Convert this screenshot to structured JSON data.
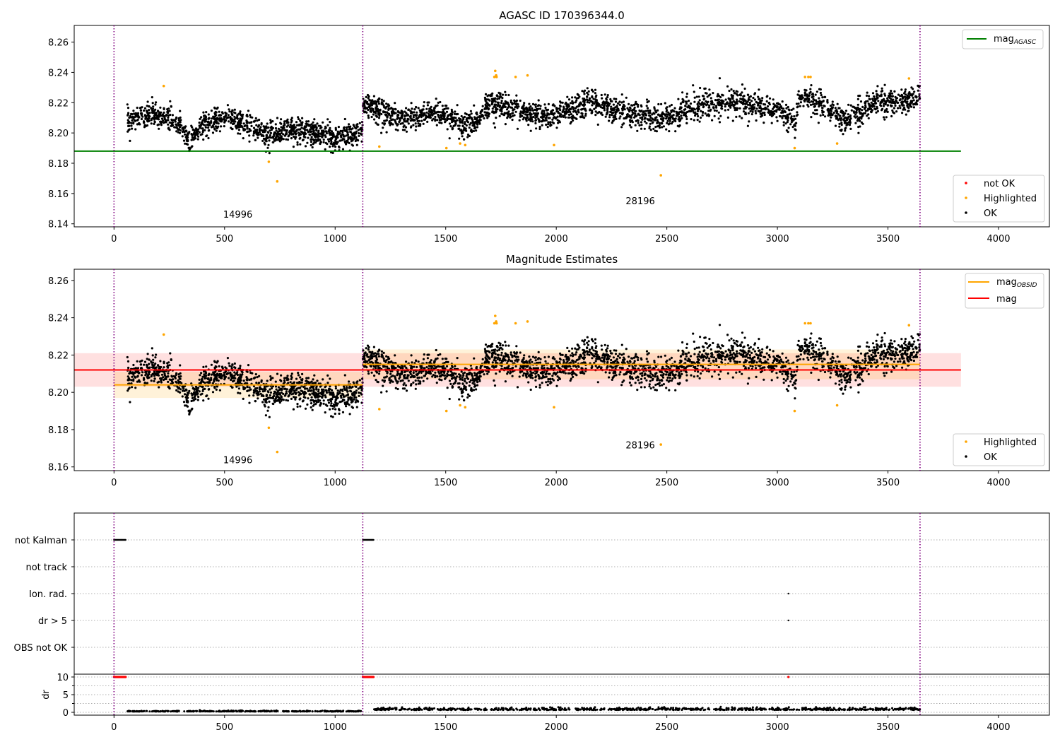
{
  "colors": {
    "ok": "#000000",
    "highlighted": "#ffa500",
    "not_ok": "#ff0000",
    "mag_agasc": "#008000",
    "mag_obsid": "#ffa500",
    "mag": "#ff0000",
    "obs_boundary": "#800080",
    "grid": "#b0b0b0"
  },
  "chart_data": [
    {
      "type": "scatter",
      "title": "AGASC ID 170396344.0",
      "xlim": [
        -180,
        4230
      ],
      "ylim": [
        8.138,
        8.271
      ],
      "xticks": [
        0,
        500,
        1000,
        1500,
        2000,
        2500,
        3000,
        3500,
        4000
      ],
      "yticks": [
        8.14,
        8.16,
        8.18,
        8.2,
        8.22,
        8.24,
        8.26
      ],
      "ytick_labels": [
        "8.14",
        "8.16",
        "8.18",
        "8.20",
        "8.22",
        "8.24",
        "8.26"
      ],
      "obs_boundaries": [
        0,
        1125,
        3645
      ],
      "obs_labels": [
        {
          "text": "14996",
          "x": 560,
          "y": 8.144
        },
        {
          "text": "28196",
          "x": 2380,
          "y": 8.153
        }
      ],
      "lines": [
        {
          "name": "mag_AGASC",
          "x": [
            -180,
            3830
          ],
          "y": [
            8.188,
            8.188
          ],
          "color": "#008000"
        }
      ],
      "legend_upper": {
        "location": "upper right",
        "entries": [
          {
            "label_main": "mag",
            "label_sub": "AGASC",
            "color": "#008000"
          }
        ]
      },
      "legend_lower": {
        "location": "lower right",
        "entries": [
          {
            "label": "not OK",
            "color": "#ff0000"
          },
          {
            "label": "Highlighted",
            "color": "#ffa500"
          },
          {
            "label": "OK",
            "color": "#000000"
          }
        ]
      },
      "series": [
        {
          "name": "OK",
          "observations": [
            {
              "start": 60,
              "end": 1125,
              "segments": [
                [
                  60,
                  8.208
                ],
                [
                  150,
                  8.212
                ],
                [
                  230,
                  8.21
                ],
                [
                  290,
                  8.206
                ],
                [
                  340,
                  8.194
                ],
                [
                  400,
                  8.205
                ],
                [
                  520,
                  8.21
                ],
                [
                  620,
                  8.204
                ],
                [
                  700,
                  8.198
                ],
                [
                  780,
                  8.203
                ],
                [
                  900,
                  8.2
                ],
                [
                  1000,
                  8.197
                ],
                [
                  1060,
                  8.198
                ],
                [
                  1125,
                  8.203
                ]
              ],
              "scatter": 0.0055,
              "n": 1150
            },
            {
              "start": 1125,
              "end": 3645,
              "segments": [
                [
                  1125,
                  8.22
                ],
                [
                  1200,
                  8.215
                ],
                [
                  1300,
                  8.208
                ],
                [
                  1450,
                  8.214
                ],
                [
                  1550,
                  8.208
                ],
                [
                  1620,
                  8.205
                ],
                [
                  1700,
                  8.219
                ],
                [
                  1760,
                  8.217
                ],
                [
                  1900,
                  8.211
                ],
                [
                  2000,
                  8.212
                ],
                [
                  2150,
                  8.22
                ],
                [
                  2300,
                  8.214
                ],
                [
                  2500,
                  8.209
                ],
                [
                  2650,
                  8.218
                ],
                [
                  2800,
                  8.221
                ],
                [
                  3000,
                  8.215
                ],
                [
                  3080,
                  8.207
                ],
                [
                  3100,
                  8.225
                ],
                [
                  3200,
                  8.219
                ],
                [
                  3300,
                  8.208
                ],
                [
                  3450,
                  8.22
                ],
                [
                  3645,
                  8.222
                ]
              ],
              "scatter": 0.006,
              "n": 2500
            }
          ]
        },
        {
          "name": "Highlighted",
          "x": [
            225,
            700,
            738,
            1200,
            1503,
            1565,
            1588,
            1720,
            1724,
            1728,
            1730,
            1816,
            1870,
            1990,
            2473,
            3078,
            3125,
            3140,
            3150,
            3270,
            3595
          ],
          "y": [
            8.231,
            8.181,
            8.168,
            8.191,
            8.19,
            8.193,
            8.192,
            8.237,
            8.241,
            8.238,
            8.237,
            8.237,
            8.238,
            8.192,
            8.172,
            8.19,
            8.237,
            8.237,
            8.237,
            8.193,
            8.236
          ]
        },
        {
          "name": "not OK",
          "x": [],
          "y": []
        }
      ]
    },
    {
      "type": "scatter",
      "title": "Magnitude Estimates",
      "xlim": [
        -180,
        4230
      ],
      "ylim": [
        8.158,
        8.266
      ],
      "xticks": [
        0,
        500,
        1000,
        1500,
        2000,
        2500,
        3000,
        3500,
        4000
      ],
      "yticks": [
        8.16,
        8.18,
        8.2,
        8.22,
        8.24,
        8.26
      ],
      "ytick_labels": [
        "8.16",
        "8.18",
        "8.20",
        "8.22",
        "8.24",
        "8.26"
      ],
      "obs_boundaries": [
        0,
        1125,
        3645
      ],
      "obs_labels": [
        {
          "text": "14996",
          "x": 560,
          "y": 8.162
        },
        {
          "text": "28196",
          "x": 2380,
          "y": 8.17
        }
      ],
      "mag_band": {
        "x": [
          -180,
          3830
        ],
        "y_low": 8.203,
        "y_high": 8.221,
        "color": "#ff0000",
        "opacity": 0.12
      },
      "obsid_bands": [
        {
          "x": [
            0,
            1125
          ],
          "y_low": 8.197,
          "y_high": 8.211
        },
        {
          "x": [
            1125,
            3645
          ],
          "y_low": 8.207,
          "y_high": 8.223
        }
      ],
      "lines": [
        {
          "name": "mag",
          "x": [
            -180,
            3830
          ],
          "y": [
            8.212,
            8.212
          ],
          "color": "#ff0000"
        },
        {
          "name": "mag_OBSID",
          "x": [
            0,
            1125
          ],
          "y": [
            8.204,
            8.204
          ],
          "color": "#ffa500"
        },
        {
          "name": "mag_OBSID",
          "x": [
            1125,
            3645
          ],
          "y": [
            8.215,
            8.215
          ],
          "color": "#ffa500"
        }
      ],
      "legend_upper": {
        "location": "upper right",
        "entries": [
          {
            "label_main": "mag",
            "label_sub": "OBSID",
            "color": "#ffa500"
          },
          {
            "label_main": "mag",
            "label_sub": "",
            "color": "#ff0000"
          }
        ]
      },
      "legend_lower": {
        "location": "lower right",
        "entries": [
          {
            "label": "Highlighted",
            "color": "#ffa500"
          },
          {
            "label": "OK",
            "color": "#000000"
          }
        ]
      }
    },
    {
      "type": "scatter",
      "title": "",
      "xlim": [
        -180,
        4230
      ],
      "xticks": [
        0,
        500,
        1000,
        1500,
        2000,
        2500,
        3000,
        3500,
        4000
      ],
      "flag_rows": [
        "not Kalman",
        "not track",
        "Ion. rad.",
        "dr > 5",
        "OBS not OK"
      ],
      "flags": [
        {
          "row": "not Kalman",
          "ranges": [
            [
              0,
              55
            ],
            [
              1125,
              1175
            ]
          ]
        },
        {
          "row": "Ion. rad.",
          "points": [
            3050
          ]
        },
        {
          "row": "dr > 5",
          "points": [
            3050
          ]
        }
      ],
      "dr": {
        "ylabel": "dr",
        "ylim": [
          -0.8,
          10.8
        ],
        "yticks": [
          0,
          5,
          10
        ],
        "ytick_labels": [
          "0",
          "5",
          "10"
        ],
        "clipped_at": 10,
        "clipped_ranges": [
          [
            0,
            55
          ],
          [
            1125,
            1175
          ]
        ],
        "clipped_points": [
          3050
        ],
        "obs1": {
          "start": 60,
          "end": 1125,
          "mean": 0.22,
          "scatter": 0.12,
          "n": 360
        },
        "obs2": {
          "start": 1175,
          "end": 3645,
          "mean": 0.65,
          "scatter": 0.3,
          "n": 820
        }
      }
    }
  ]
}
